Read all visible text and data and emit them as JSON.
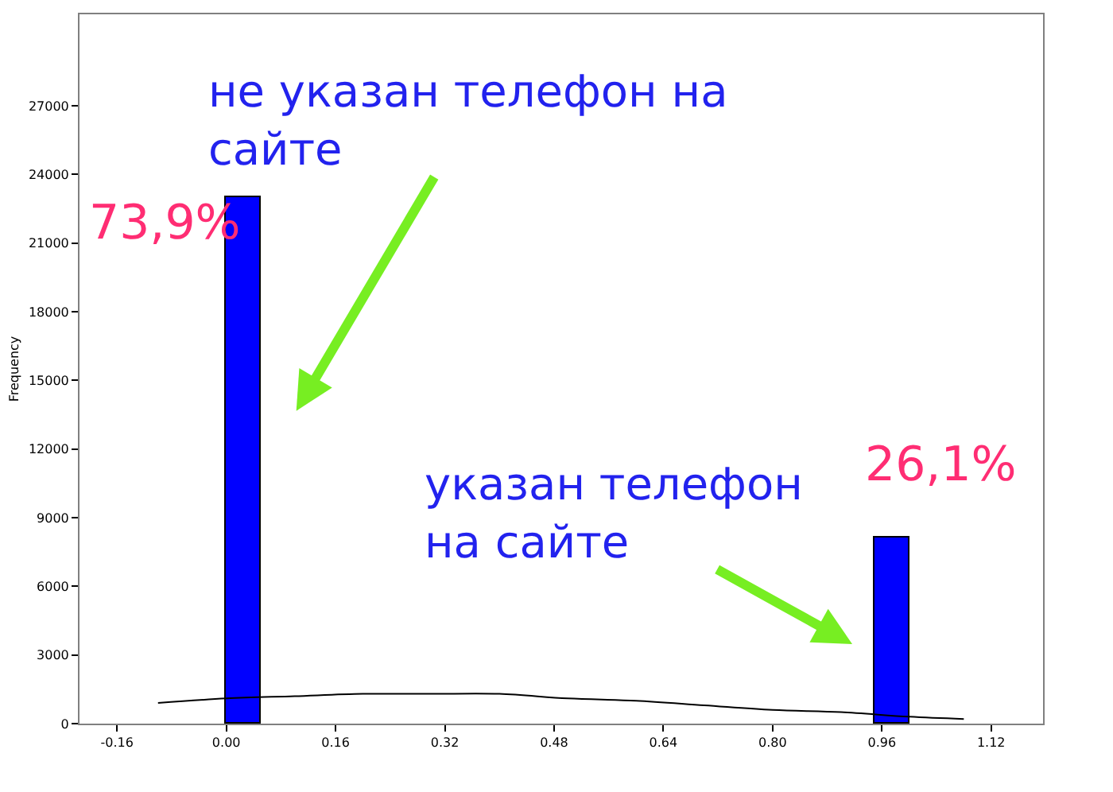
{
  "chart_data": {
    "type": "histogram",
    "ylabel": "Frequency",
    "bins": [
      0.0,
      0.05,
      0.95,
      1.0
    ],
    "values": [
      23000,
      0,
      8100
    ],
    "color": "#0000ff",
    "series": [
      {
        "type": "line",
        "color": "#000000",
        "x": [
          -0.1,
          0.0,
          0.1,
          0.2,
          0.3,
          0.4,
          0.5,
          0.6,
          0.7,
          0.8,
          0.9,
          1.0,
          1.08
        ],
        "values": [
          900,
          1100,
          1200,
          1300,
          1300,
          1300,
          1100,
          1000,
          800,
          600,
          500,
          300,
          200
        ]
      }
    ],
    "xlim": [
      -0.215,
      1.196
    ],
    "xticks": [
      -0.16,
      {
        "value": 0,
        "label": "0.00"
      },
      0.16,
      0.32,
      0.48,
      0.64,
      {
        "value": 0.8,
        "label": "0.80"
      },
      0.96,
      1.12
    ],
    "ylim": [
      0,
      31000
    ],
    "yticks": [
      0,
      3000,
      6000,
      9000,
      12000,
      15000,
      18000,
      21000,
      24000,
      27000
    ],
    "annotations": [
      "не указан телефон на\nсайте",
      {
        "text": "73,9%",
        "x": 0.025,
        "y": 23000
      },
      "указан телефон\nна сайте",
      {
        "text": "26,1%",
        "x": 0.975,
        "y": 8100
      }
    ]
  }
}
